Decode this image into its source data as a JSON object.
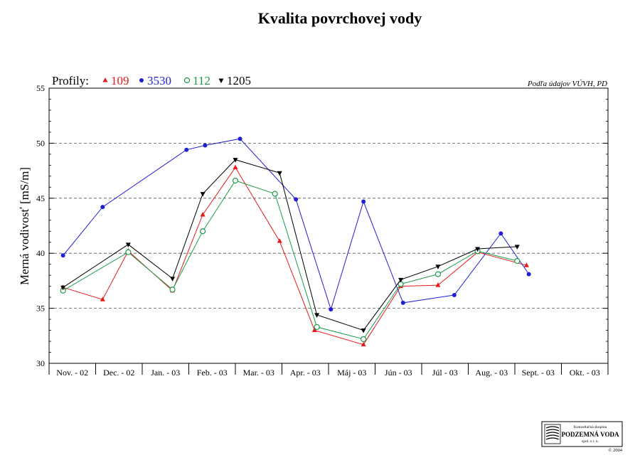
{
  "chart_data": {
    "type": "line",
    "title": "Kvalita povrchovej vody",
    "source_note": "Podľa údajov VÚVH, PD",
    "ylabel": "Merná vodivosť [mS/m]",
    "xlabel": "",
    "ylim": [
      30,
      55
    ],
    "yticks": [
      30,
      35,
      40,
      45,
      50,
      55
    ],
    "grid_y": [
      35,
      40,
      45,
      50
    ],
    "categories": [
      "Nov. - 02",
      "Dec. - 02",
      "Jan. - 03",
      "Feb. - 03",
      "Mar. - 03",
      "Apr. - 03",
      "Máj - 03",
      "Jún - 03",
      "Júl - 03",
      "Aug. - 03",
      "Sept. - 03",
      "Okt. - 03"
    ],
    "legend_title": "Profily:",
    "series": [
      {
        "name": "109",
        "color": "#e8191a",
        "marker": "triangle-up",
        "points": [
          [
            0.3,
            36.9
          ],
          [
            1.15,
            35.8
          ],
          [
            1.7,
            40.2
          ],
          [
            2.65,
            36.6
          ],
          [
            3.3,
            43.5
          ],
          [
            4.0,
            47.8
          ],
          [
            4.95,
            41.1
          ],
          [
            5.7,
            33.0
          ],
          [
            6.75,
            31.7
          ],
          [
            7.55,
            37.0
          ],
          [
            8.35,
            37.1
          ],
          [
            9.2,
            40.1
          ],
          [
            10.25,
            38.9
          ]
        ]
      },
      {
        "name": "3530",
        "color": "#1f1fd6",
        "marker": "circle",
        "points": [
          [
            0.3,
            39.8
          ],
          [
            1.15,
            44.2
          ],
          [
            2.95,
            49.4
          ],
          [
            3.35,
            49.8
          ],
          [
            4.1,
            50.4
          ],
          [
            5.3,
            44.9
          ],
          [
            6.05,
            34.9
          ],
          [
            6.75,
            44.7
          ],
          [
            7.6,
            35.5
          ],
          [
            8.7,
            36.2
          ],
          [
            9.7,
            41.8
          ],
          [
            10.3,
            38.1
          ]
        ]
      },
      {
        "name": "112",
        "color": "#1a9a4a",
        "marker": "circle-open",
        "points": [
          [
            0.3,
            36.6
          ],
          [
            1.7,
            40.1
          ],
          [
            2.65,
            36.7
          ],
          [
            3.3,
            42.0
          ],
          [
            4.0,
            46.6
          ],
          [
            4.85,
            45.4
          ],
          [
            5.75,
            33.3
          ],
          [
            6.75,
            32.2
          ],
          [
            7.55,
            37.2
          ],
          [
            8.35,
            38.1
          ],
          [
            9.2,
            40.2
          ],
          [
            10.05,
            39.3
          ]
        ]
      },
      {
        "name": "1205",
        "color": "#000000",
        "marker": "triangle-down",
        "points": [
          [
            0.3,
            36.9
          ],
          [
            1.7,
            40.8
          ],
          [
            2.65,
            37.7
          ],
          [
            3.3,
            45.4
          ],
          [
            4.0,
            48.5
          ],
          [
            4.95,
            47.3
          ],
          [
            5.75,
            34.4
          ],
          [
            6.75,
            33.0
          ],
          [
            7.55,
            37.6
          ],
          [
            8.35,
            38.8
          ],
          [
            9.2,
            40.4
          ],
          [
            10.05,
            40.6
          ]
        ]
      }
    ]
  },
  "logo": {
    "line1": "Konzultačná skupina",
    "line2": "PODZEMNÁ VODA",
    "line3": "spol. s r. o.",
    "copyright": "© 2004"
  }
}
